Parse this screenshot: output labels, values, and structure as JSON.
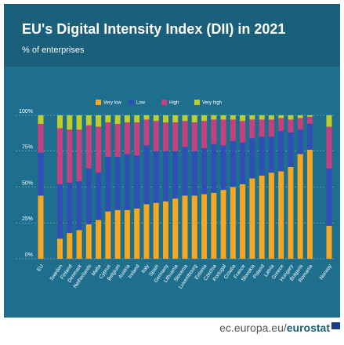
{
  "chart_data": {
    "type": "stacked_bar",
    "title": "EU's Digital Intensity Index (DII) in 2021",
    "subtitle": "% of enterprises",
    "categories": [
      "EU",
      "Sweden",
      "Finland",
      "Denmark",
      "Netherlands",
      "Malta",
      "Cyprus",
      "Belgium",
      "Austria",
      "Ireland",
      "Italy",
      "Spain",
      "Germany",
      "Lithuania",
      "Slovenia",
      "Luxembourg",
      "Estonia",
      "Czechia",
      "Portugal",
      "Croatia",
      "France",
      "Slovakia",
      "Poland",
      "Latvia",
      "Greece",
      "Hungary",
      "Bulgaria",
      "Romania",
      "Norway"
    ],
    "series": [
      {
        "name": "Very low",
        "color": "#f5a623",
        "values": [
          44,
          14,
          18,
          20,
          24,
          27,
          33,
          34,
          34,
          35,
          38,
          39,
          40,
          42,
          44,
          44,
          45,
          46,
          48,
          50,
          52,
          56,
          58,
          60,
          61,
          64,
          73,
          76,
          23
        ]
      },
      {
        "name": "Low",
        "color": "#2f4fb4",
        "values": [
          30,
          38,
          35,
          34,
          39,
          33,
          38,
          37,
          39,
          37,
          41,
          36,
          35,
          33,
          34,
          31,
          32,
          34,
          31,
          32,
          29,
          28,
          27,
          25,
          28,
          24,
          17,
          18,
          40
        ]
      },
      {
        "name": "High",
        "color": "#c4407f",
        "values": [
          20,
          39,
          37,
          36,
          30,
          32,
          24,
          23,
          22,
          23,
          18,
          21,
          20,
          20,
          18,
          20,
          19,
          17,
          18,
          15,
          15,
          13,
          12,
          12,
          9,
          9,
          8,
          5,
          29
        ]
      },
      {
        "name": "Very high",
        "color": "#bccd2c",
        "values": [
          6,
          9,
          10,
          10,
          7,
          8,
          5,
          6,
          5,
          5,
          3,
          4,
          5,
          5,
          4,
          5,
          4,
          3,
          3,
          3,
          4,
          3,
          3,
          3,
          2,
          3,
          2,
          1,
          8
        ]
      }
    ],
    "ylim": [
      0,
      100
    ],
    "yticks": [
      {
        "value": 0,
        "label": "0%"
      },
      {
        "value": 25,
        "label": "25%"
      },
      {
        "value": 50,
        "label": "50%"
      },
      {
        "value": 75,
        "label": "75%"
      },
      {
        "value": 100,
        "label": "100%"
      }
    ],
    "grid": true
  },
  "source": {
    "url": "ec.europa.eu/",
    "brand": "eurostat"
  }
}
